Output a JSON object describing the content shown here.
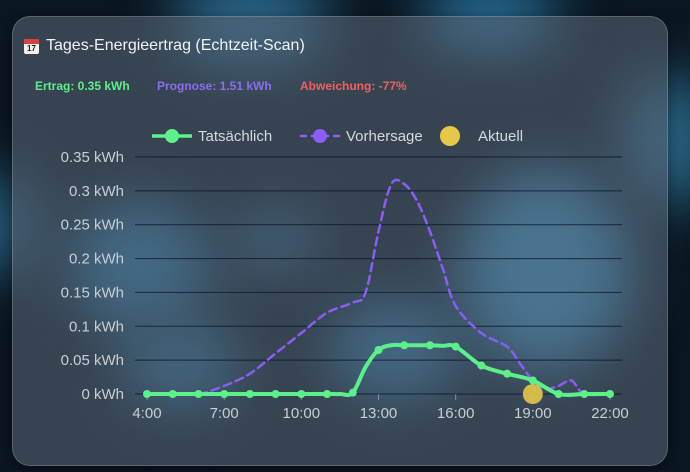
{
  "card": {
    "icon": "calendar-icon",
    "calendar_day": "17",
    "title": "Tages-Energieertrag (Echtzeit-Scan)"
  },
  "stats": {
    "ertrag": "Ertrag: 0.35 kWh",
    "prognose": "Prognose: 1.51 kWh",
    "abweichung": "Abweichung: -77%"
  },
  "colors": {
    "actual": "#5cf08a",
    "forecast": "#8b5cf6",
    "current": "#e3c84a",
    "abweichung": "#f06060"
  },
  "chart_data": {
    "type": "line",
    "x_tick_labels": [
      "4:00",
      "7:00",
      "10:00",
      "13:00",
      "16:00",
      "19:00",
      "22:00"
    ],
    "y_tick_labels": [
      "0 kWh",
      "0.05 kWh",
      "0.1 kWh",
      "0.15 kWh",
      "0.2 kWh",
      "0.25 kWh",
      "0.3 kWh",
      "0.35 kWh"
    ],
    "ylim": [
      0,
      0.35
    ],
    "xlim": [
      4,
      22
    ],
    "grid": true,
    "legend_position": "top",
    "series": [
      {
        "name": "Tatsächlich",
        "style": "solid",
        "x": [
          4,
          5,
          6,
          7,
          8,
          9,
          10,
          11,
          11.5,
          12,
          12.5,
          13,
          13.5,
          14,
          14.5,
          15,
          15.5,
          16,
          17,
          18,
          19,
          20,
          21,
          22
        ],
        "y": [
          0,
          0,
          0,
          0,
          0,
          0,
          0,
          0,
          0,
          0.002,
          0.04,
          0.065,
          0.072,
          0.072,
          0.072,
          0.072,
          0.071,
          0.07,
          0.042,
          0.03,
          0.02,
          0,
          0,
          0
        ]
      },
      {
        "name": "Vorhersage",
        "style": "dashed",
        "x": [
          4,
          5,
          6,
          7,
          8,
          9,
          10,
          11,
          12,
          12.5,
          13,
          13.5,
          14,
          14.5,
          15,
          15.5,
          16,
          17,
          18,
          18.5,
          19,
          19.5,
          20,
          20.5,
          21,
          22
        ],
        "y": [
          0,
          0,
          0,
          0.012,
          0.03,
          0.06,
          0.09,
          0.12,
          0.135,
          0.15,
          0.24,
          0.31,
          0.31,
          0.285,
          0.24,
          0.185,
          0.13,
          0.09,
          0.07,
          0.045,
          0.02,
          0.008,
          0.012,
          0.02,
          0,
          0
        ]
      },
      {
        "name": "Aktuell",
        "style": "point",
        "x": [
          19
        ],
        "y": [
          0
        ]
      }
    ]
  }
}
